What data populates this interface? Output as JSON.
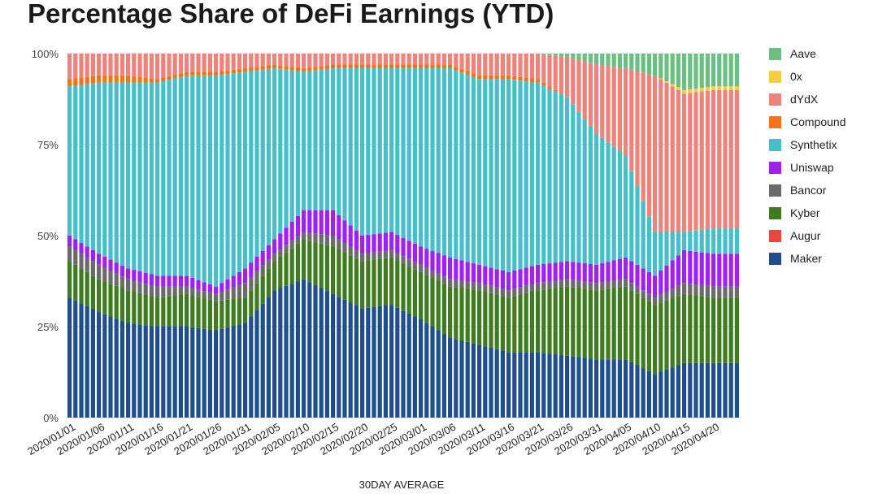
{
  "title": "Percentage Share of DeFi Earnings (YTD)",
  "chart_data": {
    "type": "bar",
    "stacked": true,
    "title": "Percentage Share of DeFi Earnings (YTD)",
    "xlabel": "30DAY AVERAGE",
    "ylabel": "",
    "ylim": [
      0,
      100
    ],
    "y_ticks": [
      "0%",
      "25%",
      "50%",
      "75%",
      "100%"
    ],
    "y_tick_values": [
      0,
      25,
      50,
      75,
      100
    ],
    "grid": true,
    "legend_position": "right",
    "categories": [
      "2020/01/01",
      "2020/01/06",
      "2020/01/11",
      "2020/01/16",
      "2020/01/21",
      "2020/01/26",
      "2020/01/31",
      "2020/02/05",
      "2020/02/10",
      "2020/02/15",
      "2020/02/20",
      "2020/02/25",
      "2020/03/01",
      "2020/03/06",
      "2020/03/11",
      "2020/03/16",
      "2020/03/21",
      "2020/03/26",
      "2020/03/31",
      "2020/04/05",
      "2020/04/10",
      "2020/04/15",
      "2020/04/20"
    ],
    "bars_per_category": 5,
    "series": [
      {
        "name": "Maker",
        "color": "#1f4e8c",
        "values": [
          33,
          29,
          26,
          25,
          25,
          24,
          26,
          35,
          38,
          34,
          30,
          31,
          27,
          22,
          20,
          18,
          18,
          17,
          16,
          16,
          12,
          15,
          15
        ]
      },
      {
        "name": "Augur",
        "color": "#e8473e",
        "values": [
          0,
          0,
          0,
          0,
          0,
          0,
          0,
          0,
          0,
          0,
          0,
          0,
          0,
          0,
          0,
          0,
          0,
          0,
          0,
          0,
          0,
          0,
          0
        ]
      },
      {
        "name": "Kyber",
        "color": "#3f7b1f",
        "values": [
          10,
          9,
          9,
          8,
          9,
          8,
          7,
          8,
          11,
          13,
          13,
          13,
          13,
          14,
          15,
          15,
          17,
          19,
          19,
          20,
          19,
          19,
          18
        ]
      },
      {
        "name": "Bancor",
        "color": "#6b6b6b",
        "values": [
          4,
          4,
          3,
          3,
          2,
          2,
          4,
          2,
          2,
          3,
          2,
          2,
          2,
          2,
          2,
          2,
          2,
          2,
          2,
          2,
          2,
          3,
          3
        ]
      },
      {
        "name": "Uniswap",
        "color": "#a020f0",
        "values": [
          3,
          3,
          3,
          3,
          3,
          2,
          4,
          4,
          6,
          7,
          5,
          5,
          5,
          6,
          5,
          5,
          5,
          5,
          5,
          6,
          6,
          9,
          9
        ]
      },
      {
        "name": "Synthetix",
        "color": "#45bfc9",
        "values": [
          41,
          47,
          51,
          53,
          55,
          58,
          54,
          47,
          38,
          39,
          46,
          45,
          49,
          52,
          51,
          53,
          50,
          45,
          36,
          28,
          12,
          5,
          7
        ]
      },
      {
        "name": "Compound",
        "color": "#f57316",
        "values": [
          2,
          2,
          2,
          1,
          1,
          1,
          1,
          1,
          1,
          1,
          1,
          1,
          1,
          1,
          1,
          1,
          1,
          0,
          0,
          0,
          0,
          0,
          0
        ]
      },
      {
        "name": "dYdX",
        "color": "#ed837b",
        "values": [
          7,
          6,
          6,
          7,
          5,
          5,
          4,
          3,
          4,
          3,
          3,
          3,
          3,
          3,
          6,
          6,
          7,
          11,
          19,
          24,
          43,
          38,
          38
        ]
      },
      {
        "name": "0x",
        "color": "#f6cf3e",
        "values": [
          0,
          0,
          0,
          0,
          0,
          0,
          0,
          0,
          0,
          0,
          0,
          0,
          0,
          0,
          0,
          0,
          0,
          0,
          0,
          0,
          0,
          1,
          1
        ]
      },
      {
        "name": "Aave",
        "color": "#6abf82",
        "values": [
          0,
          0,
          0,
          0,
          0,
          0,
          0,
          0,
          0,
          0,
          0,
          0,
          0,
          0,
          0,
          0,
          0,
          1,
          3,
          4,
          6,
          10,
          9
        ]
      }
    ]
  }
}
